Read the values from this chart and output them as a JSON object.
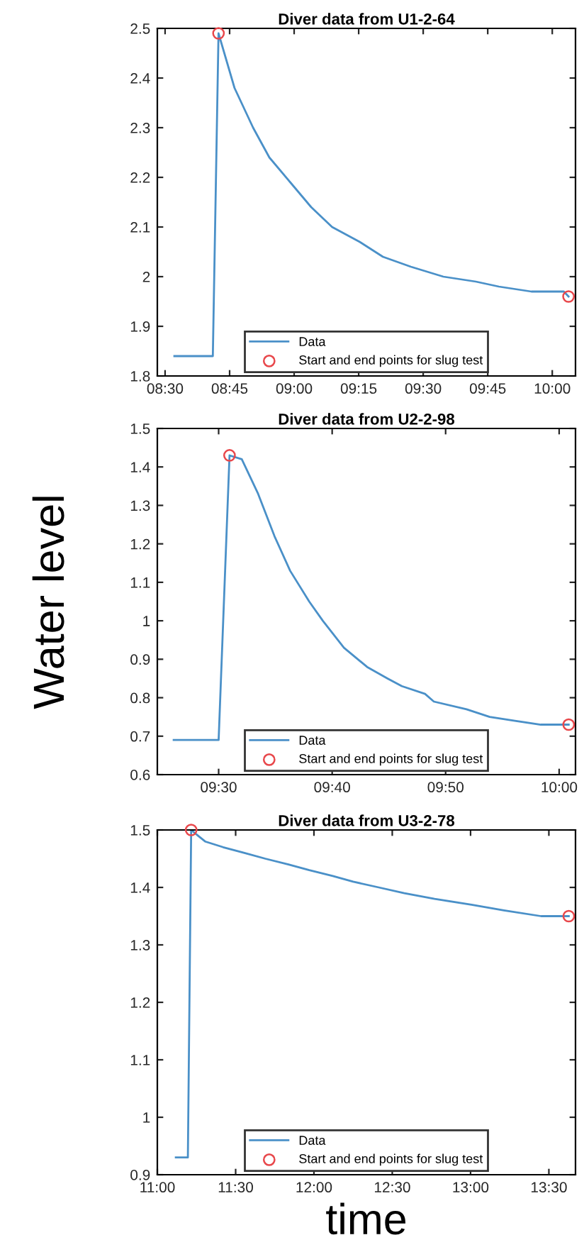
{
  "chart_data": [
    {
      "type": "line",
      "title": "Diver data from U1-2-64",
      "xlim": [
        8.47,
        10.09
      ],
      "ylim": [
        1.8,
        2.5
      ],
      "xticks": [
        {
          "value": 8.5,
          "label": "08:30"
        },
        {
          "value": 8.75,
          "label": "08:45"
        },
        {
          "value": 9.0,
          "label": "09:00"
        },
        {
          "value": 9.25,
          "label": "09:15"
        },
        {
          "value": 9.5,
          "label": "09:30"
        },
        {
          "value": 9.75,
          "label": "09:45"
        },
        {
          "value": 10.0,
          "label": "10:00"
        }
      ],
      "yticks": [
        1.8,
        1.9,
        2,
        2.1,
        2.2,
        2.3,
        2.4,
        2.5
      ],
      "grid": false,
      "legend": "bottom",
      "series": [
        {
          "name": "Data",
          "color": "#4a90c8",
          "marker": "none",
          "line_style": "solid",
          "x": [
            8.536,
            8.685,
            8.707,
            8.769,
            8.841,
            8.904,
            8.985,
            9.066,
            9.147,
            9.254,
            9.344,
            9.452,
            9.578,
            9.704,
            9.793,
            9.919,
            10.045,
            10.063
          ],
          "values": [
            1.84,
            1.84,
            2.49,
            2.38,
            2.3,
            2.24,
            2.19,
            2.14,
            2.1,
            2.07,
            2.04,
            2.02,
            2.0,
            1.99,
            1.98,
            1.97,
            1.97,
            1.96
          ]
        },
        {
          "name": "Start and end points for slug test",
          "type": "scatter",
          "color": "#e8474b",
          "marker": "circle",
          "x": [
            8.707,
            10.063
          ],
          "values": [
            2.49,
            1.96
          ]
        }
      ]
    },
    {
      "type": "line",
      "title": "Diver data from U2-2-98",
      "ylabel": "Water level",
      "xlim": [
        9.41,
        10.024
      ],
      "ylim": [
        0.6,
        1.5
      ],
      "xticks": [
        {
          "value": 9.5,
          "label": "09:30"
        },
        {
          "value": 9.6667,
          "label": "09:40"
        },
        {
          "value": 9.8333,
          "label": "09:50"
        },
        {
          "value": 10.0,
          "label": "10:00"
        }
      ],
      "yticks": [
        0.6,
        0.7,
        0.8,
        0.9,
        1,
        1.1,
        1.2,
        1.3,
        1.4,
        1.5
      ],
      "grid": false,
      "legend": "bottom",
      "series": [
        {
          "name": "Data",
          "color": "#4a90c8",
          "marker": "none",
          "line_style": "solid",
          "x": [
            9.434,
            9.5,
            9.516,
            9.534,
            9.558,
            9.582,
            9.605,
            9.633,
            9.653,
            9.684,
            9.718,
            9.748,
            9.769,
            9.803,
            9.816,
            9.864,
            9.898,
            9.935,
            9.973,
            10.014
          ],
          "values": [
            0.69,
            0.69,
            1.43,
            1.42,
            1.33,
            1.22,
            1.13,
            1.05,
            1.0,
            0.93,
            0.88,
            0.85,
            0.83,
            0.81,
            0.79,
            0.77,
            0.75,
            0.74,
            0.73,
            0.73
          ]
        },
        {
          "name": "Start and end points for slug test",
          "type": "scatter",
          "color": "#e8474b",
          "marker": "circle",
          "x": [
            9.516,
            10.014
          ],
          "values": [
            1.43,
            0.73
          ]
        }
      ]
    },
    {
      "type": "line",
      "title": "Diver data from U3-2-78",
      "xlabel": "time",
      "xlim": [
        11.0,
        13.67
      ],
      "ylim": [
        0.9,
        1.5
      ],
      "xticks": [
        {
          "value": 11.0,
          "label": "11:00"
        },
        {
          "value": 11.5,
          "label": "11:30"
        },
        {
          "value": 12.0,
          "label": "12:00"
        },
        {
          "value": 12.5,
          "label": "12:30"
        },
        {
          "value": 13.0,
          "label": "13:00"
        },
        {
          "value": 13.5,
          "label": "13:30"
        }
      ],
      "yticks": [
        0.9,
        1,
        1.1,
        1.2,
        1.3,
        1.4,
        1.5
      ],
      "grid": false,
      "legend": "bottom",
      "series": [
        {
          "name": "Data",
          "color": "#4a90c8",
          "marker": "none",
          "line_style": "solid",
          "x": [
            11.118,
            11.195,
            11.216,
            11.26,
            11.305,
            11.42,
            11.556,
            11.69,
            11.837,
            11.97,
            12.12,
            12.25,
            12.414,
            12.577,
            12.77,
            13.006,
            13.213,
            13.45,
            13.627
          ],
          "values": [
            0.93,
            0.93,
            1.5,
            1.49,
            1.48,
            1.47,
            1.46,
            1.45,
            1.44,
            1.43,
            1.42,
            1.41,
            1.4,
            1.39,
            1.38,
            1.37,
            1.36,
            1.35,
            1.35
          ]
        },
        {
          "name": "Start and end points for slug test",
          "type": "scatter",
          "color": "#e8474b",
          "marker": "circle",
          "x": [
            11.216,
            13.627
          ],
          "values": [
            1.5,
            1.35
          ]
        }
      ]
    }
  ]
}
